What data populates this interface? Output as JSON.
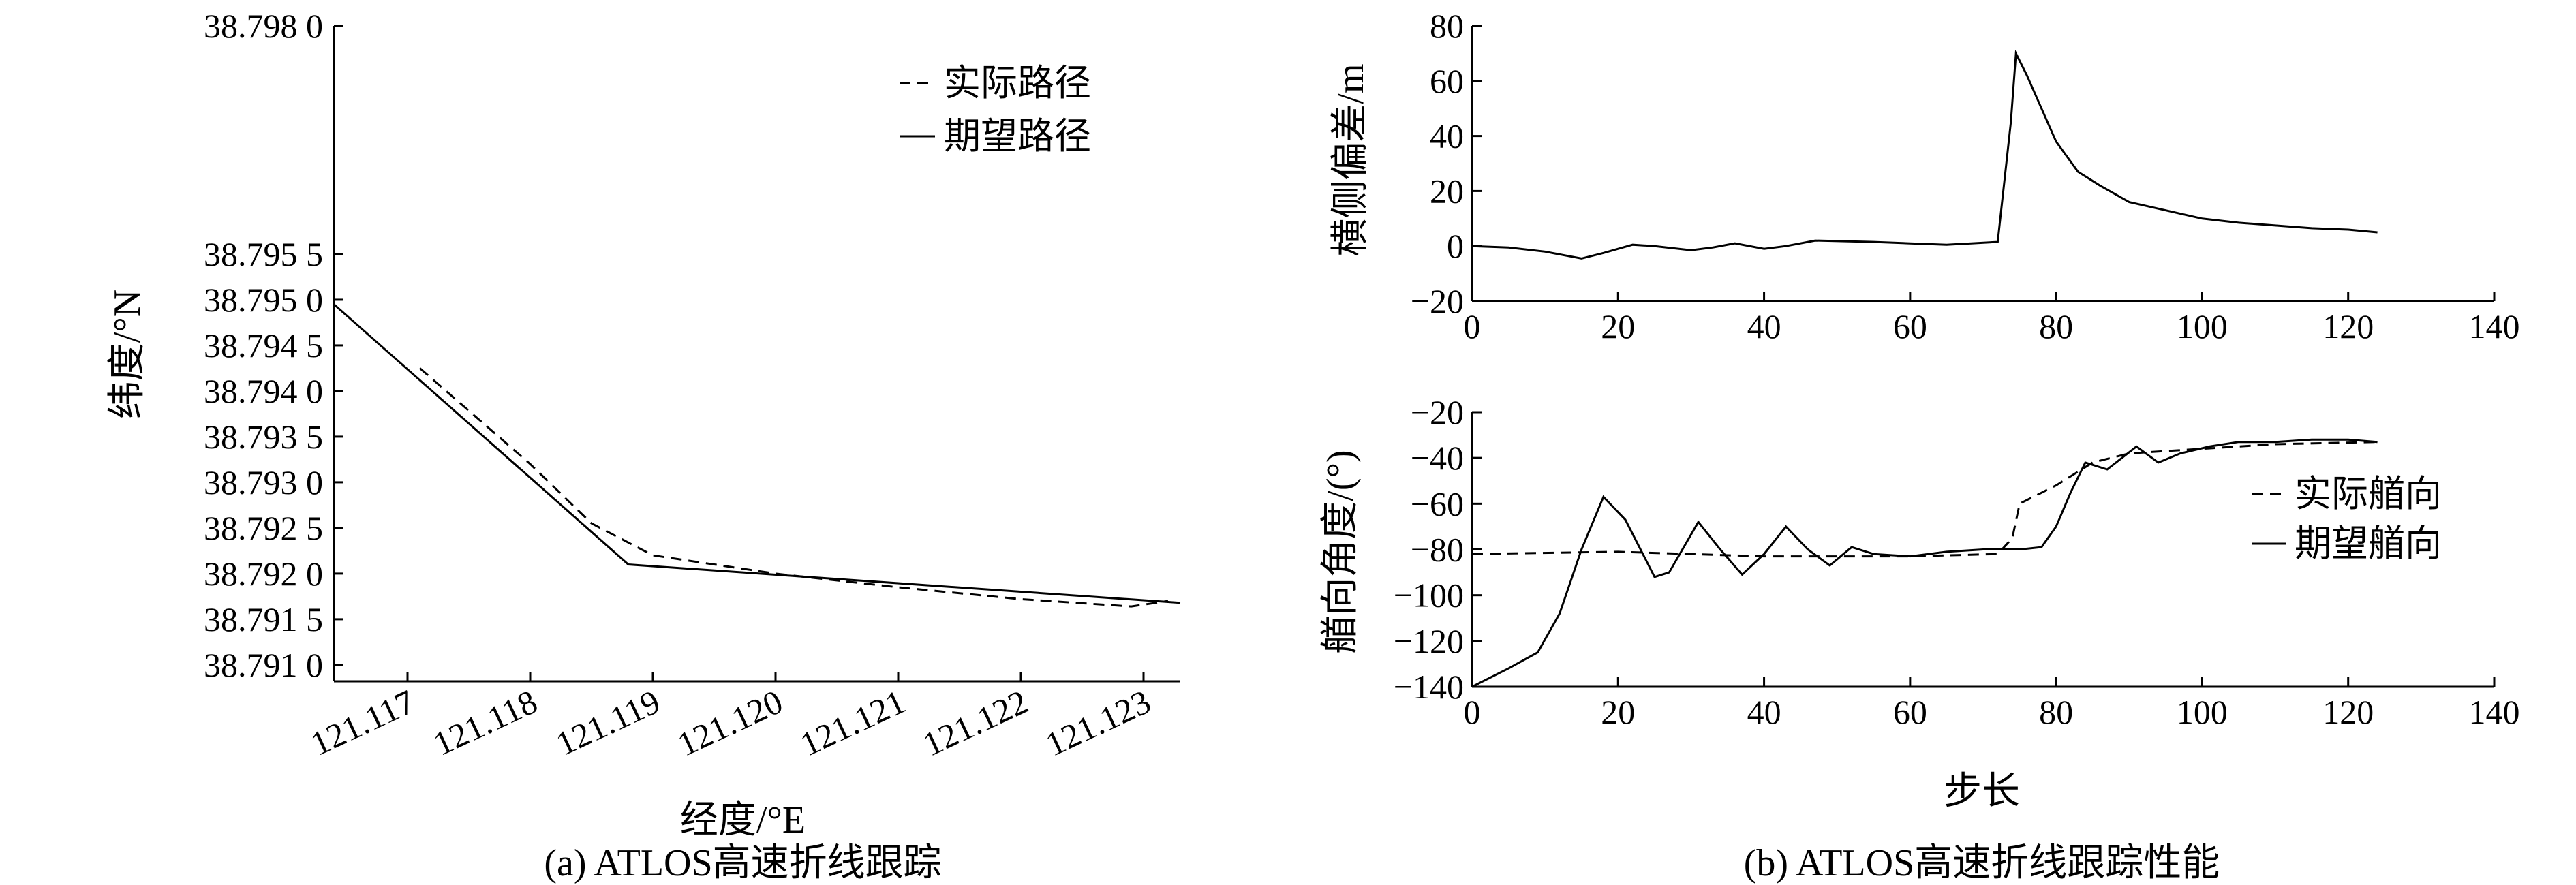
{
  "chart_data": [
    {
      "type": "line",
      "caption": "(a) ATLOS高速折线跟踪",
      "xlabel": "经度/°E",
      "ylabel": "纬度/°N",
      "xlim": [
        121.1164,
        121.1233
      ],
      "ylim": [
        38.79082,
        38.798
      ],
      "xticks": [
        121.117,
        121.118,
        121.119,
        121.12,
        121.121,
        121.122,
        121.123
      ],
      "xtick_labels": [
        "121.117",
        "121.118",
        "121.119",
        "121.120",
        "121.121",
        "121.122",
        "121.123"
      ],
      "yticks": [
        38.791,
        38.7915,
        38.792,
        38.7925,
        38.793,
        38.7935,
        38.794,
        38.7945,
        38.795,
        38.7955,
        38.798
      ],
      "ytick_labels": [
        "38.791 0",
        "38.791 5",
        "38.792 0",
        "38.792 5",
        "38.793 0",
        "38.793 5",
        "38.794 0",
        "38.794 5",
        "38.795 0",
        "38.795 5",
        "38.798 0"
      ],
      "legend_position": "top-right",
      "series": [
        {
          "name": "实际路径",
          "style": "dashed",
          "x": [
            121.1171,
            121.118,
            121.1185,
            121.119,
            121.1195,
            121.12,
            121.121,
            121.122,
            121.1229,
            121.1232
          ],
          "y": [
            38.79425,
            38.7932,
            38.79255,
            38.7922,
            38.7921,
            38.792,
            38.79185,
            38.79172,
            38.79164,
            38.7917
          ]
        },
        {
          "name": "期望路径",
          "style": "solid",
          "x": [
            121.1164,
            121.1188,
            121.1233
          ],
          "y": [
            38.79495,
            38.7921,
            38.79168
          ]
        }
      ]
    },
    {
      "type": "line",
      "caption": "(b) ATLOS高速折线跟踪性能",
      "xlabel": "步长",
      "panels": [
        {
          "ylabel": "横侧偏差/m",
          "xlim": [
            0,
            140
          ],
          "ylim": [
            -20,
            80
          ],
          "xticks": [
            0,
            20,
            40,
            60,
            80,
            100,
            120,
            140
          ],
          "yticks": [
            -20,
            0,
            20,
            40,
            60,
            80
          ],
          "series": [
            {
              "style": "solid",
              "x": [
                0,
                5,
                10,
                15,
                18,
                22,
                25,
                30,
                33,
                36,
                40,
                43,
                47,
                55,
                60,
                65,
                72,
                73.8,
                74.5,
                76,
                78,
                80,
                83,
                86,
                90,
                95,
                100,
                105,
                110,
                115,
                120,
                124
              ],
              "y": [
                0,
                -0.5,
                -2,
                -4.5,
                -2.5,
                0.5,
                0,
                -1.5,
                -0.5,
                1,
                -1,
                0,
                2,
                1.5,
                1,
                0.5,
                1.5,
                45,
                70,
                62,
                50,
                38,
                27,
                22,
                16,
                13,
                10,
                8.5,
                7.5,
                6.5,
                6,
                5
              ]
            }
          ]
        },
        {
          "ylabel": "艏向角度/(°)",
          "xlim": [
            0,
            140
          ],
          "ylim": [
            -140,
            -20
          ],
          "xticks": [
            0,
            20,
            40,
            60,
            80,
            100,
            120,
            140
          ],
          "yticks": [
            -140,
            -120,
            -100,
            -80,
            -60,
            -40,
            -20
          ],
          "legend_position": "right",
          "series": [
            {
              "name": "实际艏向",
              "style": "dashed",
              "x": [
                0,
                20,
                40,
                60,
                72,
                74,
                75,
                80,
                85,
                90,
                95,
                100,
                110,
                124
              ],
              "y": [
                -82,
                -81,
                -83,
                -83,
                -82,
                -75,
                -60,
                -52,
                -42,
                -38,
                -37,
                -36,
                -34,
                -33
              ]
            },
            {
              "name": "期望艏向",
              "style": "solid",
              "x": [
                0,
                5,
                9,
                12,
                15,
                18,
                21,
                25,
                27,
                31,
                34,
                37,
                40,
                43,
                46,
                49,
                52,
                55,
                60,
                65,
                70,
                75,
                78,
                80,
                82,
                84,
                87,
                91,
                94,
                97,
                101,
                105,
                110,
                115,
                120,
                124
              ],
              "y": [
                -140,
                -132,
                -125,
                -108,
                -80,
                -57,
                -67,
                -92,
                -90,
                -68,
                -80,
                -91,
                -82,
                -70,
                -80,
                -87,
                -79,
                -82,
                -83,
                -81,
                -80,
                -80,
                -79,
                -70,
                -55,
                -42,
                -45,
                -35,
                -42,
                -38,
                -35,
                -33,
                -33,
                -32,
                -32,
                -33
              ]
            }
          ]
        }
      ]
    }
  ]
}
